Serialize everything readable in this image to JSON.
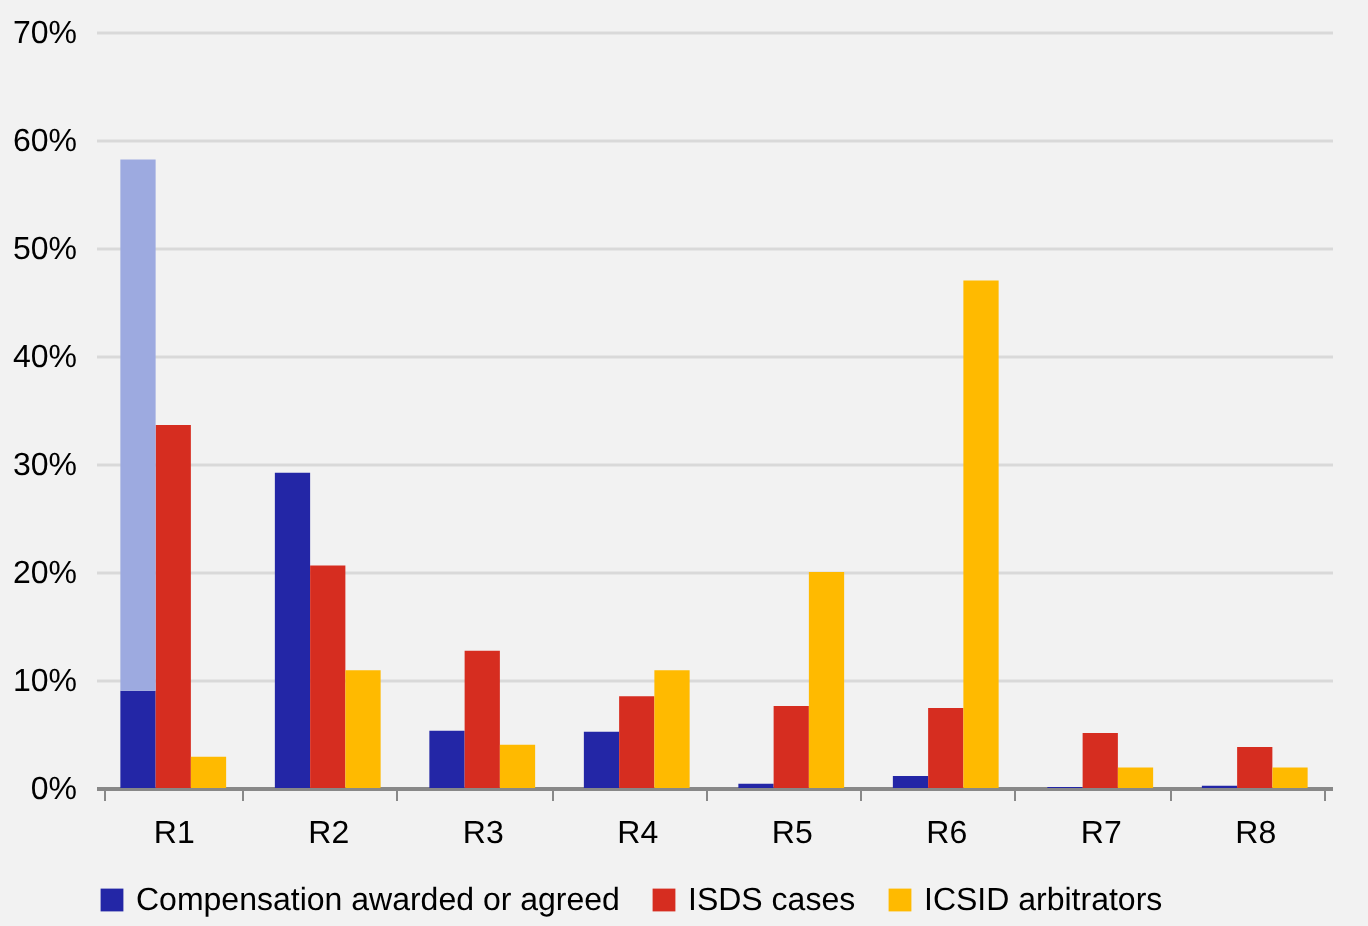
{
  "chart_data": {
    "type": "bar",
    "categories": [
      "R1",
      "R2",
      "R3",
      "R4",
      "R5",
      "R6",
      "R7",
      "R8"
    ],
    "series": [
      {
        "name": "Compensation awarded or agreed",
        "color": "#2326a6",
        "values": [
          9.0,
          29.2,
          5.3,
          5.2,
          0.4,
          1.1,
          0.1,
          0.2
        ]
      },
      {
        "color": "#9daae0",
        "values": [
          49.2,
          null,
          null,
          null,
          null,
          null,
          null,
          null
        ],
        "base": [
          9.0,
          null,
          null,
          null,
          null,
          null,
          null,
          null
        ]
      },
      {
        "name": "ISDS cases",
        "color": "#d62d20",
        "values": [
          33.6,
          20.6,
          12.7,
          8.5,
          7.6,
          7.4,
          5.1,
          3.8
        ]
      },
      {
        "name": "ICSID arbitrators",
        "color": "#ffba00",
        "values": [
          2.9,
          10.9,
          4.0,
          10.9,
          20.0,
          47.0,
          1.9,
          1.9
        ]
      }
    ],
    "ylim": [
      0,
      70
    ],
    "yticks": [
      {
        "value": 0,
        "label": "0%"
      },
      {
        "value": 10,
        "label": "10%"
      },
      {
        "value": 20,
        "label": "20%"
      },
      {
        "value": 30,
        "label": "30%"
      },
      {
        "value": 40,
        "label": "40%"
      },
      {
        "value": 50,
        "label": "50%"
      },
      {
        "value": 60,
        "label": "60%"
      },
      {
        "value": 70,
        "label": "70%"
      }
    ],
    "grid": "y",
    "legend": "bottom"
  }
}
